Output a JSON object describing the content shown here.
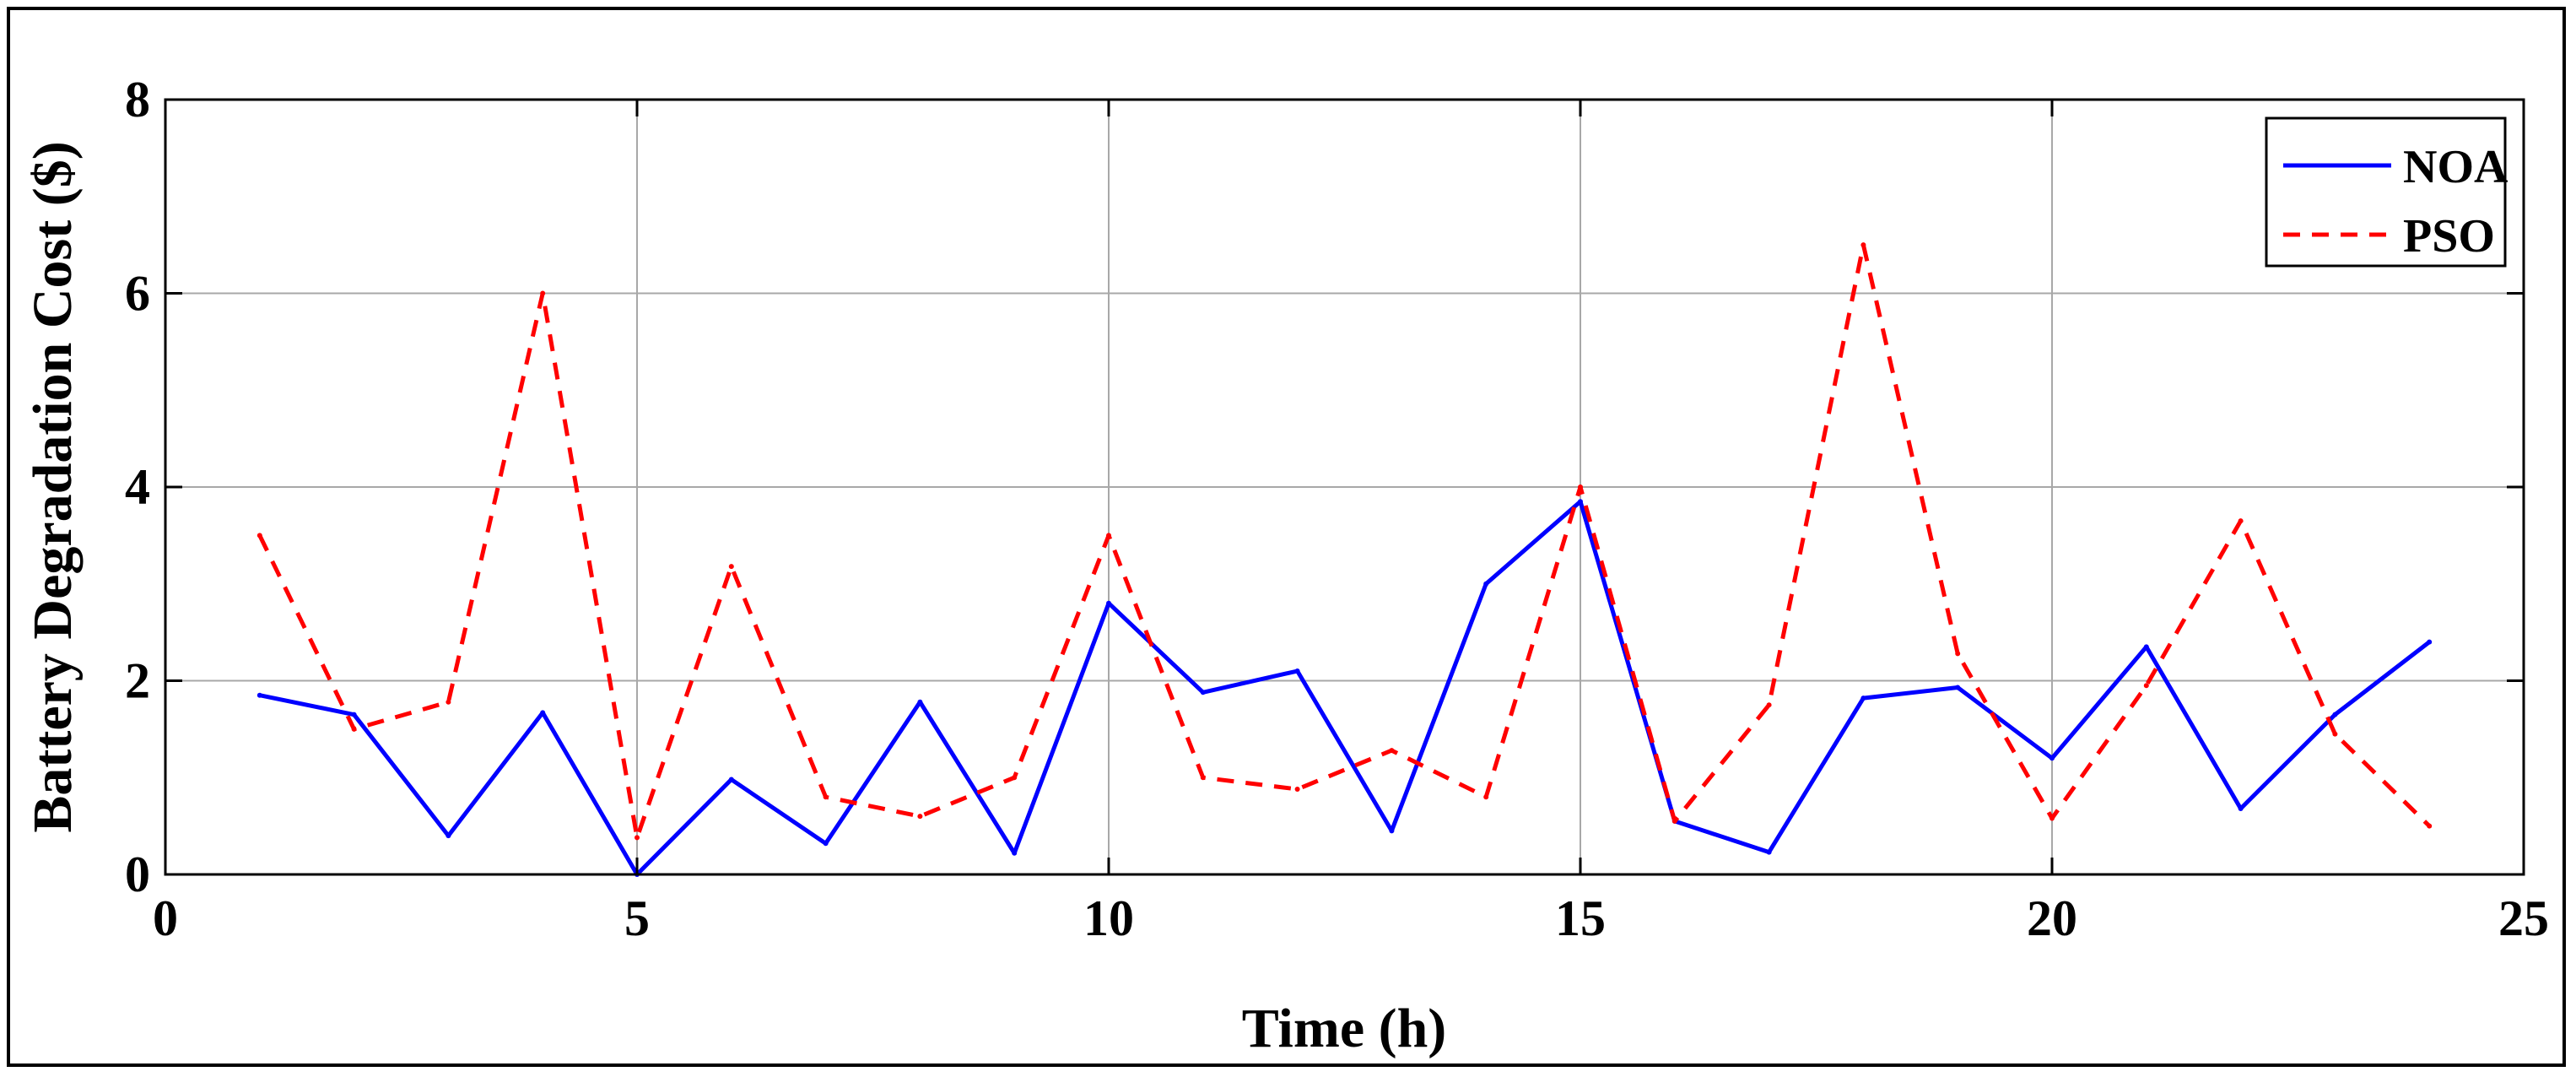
{
  "chart_data": {
    "type": "line",
    "title": "",
    "xlabel": "Time (h)",
    "ylabel": "Battery Degradation Cost ($)",
    "xlim": [
      0,
      25
    ],
    "ylim": [
      0,
      8
    ],
    "xticks": [
      0,
      5,
      10,
      15,
      20,
      25
    ],
    "yticks": [
      0,
      2,
      4,
      6,
      8
    ],
    "grid": true,
    "legend_position": "top-right",
    "x": [
      1,
      2,
      3,
      4,
      5,
      6,
      7,
      8,
      9,
      10,
      11,
      12,
      13,
      14,
      15,
      16,
      17,
      18,
      19,
      20,
      21,
      22,
      23,
      24
    ],
    "series": [
      {
        "name": "NOA",
        "color": "#0000ff",
        "style": "solid",
        "values": [
          1.85,
          1.65,
          0.4,
          1.67,
          0.0,
          0.98,
          0.32,
          1.78,
          0.22,
          2.8,
          1.88,
          2.1,
          0.45,
          3.0,
          3.85,
          0.55,
          0.23,
          1.82,
          1.93,
          1.2,
          2.35,
          0.68,
          1.65,
          2.4
        ]
      },
      {
        "name": "PSO",
        "color": "#ff0000",
        "style": "dashed",
        "values": [
          3.5,
          1.5,
          1.78,
          6.0,
          0.38,
          3.18,
          0.8,
          0.6,
          1.0,
          3.5,
          1.0,
          0.88,
          1.28,
          0.8,
          4.0,
          0.55,
          1.75,
          6.5,
          2.28,
          0.58,
          1.95,
          3.65,
          1.45,
          0.5
        ]
      }
    ]
  }
}
